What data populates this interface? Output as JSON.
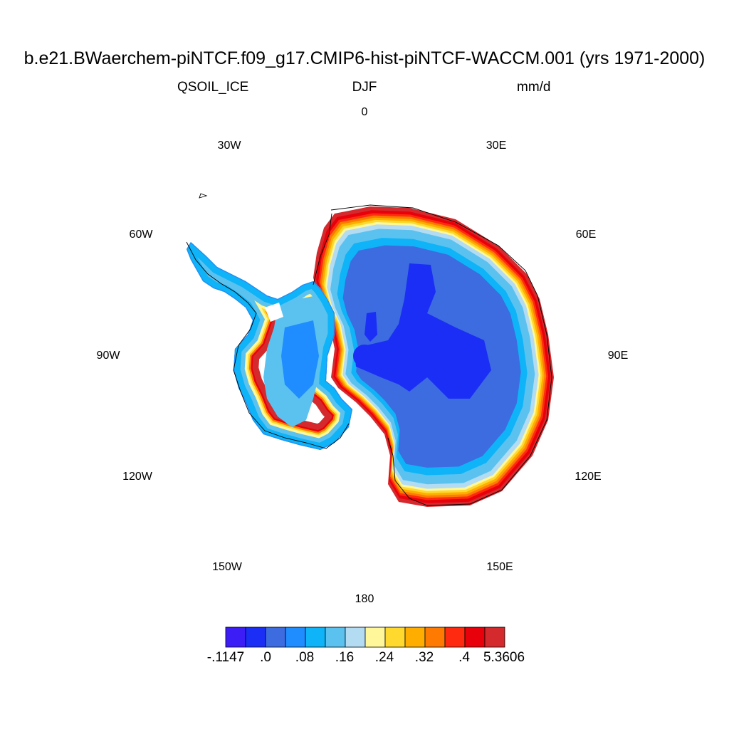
{
  "header": {
    "title": "b.e21.BWaerchem-piNTCF.f09_g17.CMIP6-hist-piNTCF-WACCM.001 (yrs 1971-2000)",
    "variable": "QSOIL_ICE",
    "season": "DJF",
    "units": "mm/d"
  },
  "map": {
    "projection": "polar stereographic",
    "region": "Antarctica",
    "longitude_labels": [
      "0",
      "30E",
      "60E",
      "90E",
      "120E",
      "150E",
      "180",
      "150W",
      "120W",
      "90W",
      "60W",
      "30W"
    ]
  },
  "colorbar": {
    "colors": [
      "#3d1df5",
      "#1a2ef5",
      "#3d6be0",
      "#1f8cff",
      "#0eb4f7",
      "#5bc2f0",
      "#b3dcf2",
      "#fff799",
      "#ffd92e",
      "#ffae00",
      "#ff7a00",
      "#ff2a10",
      "#e8000a",
      "#d42a2e"
    ],
    "tick_labels": [
      "-.1147",
      ".0",
      ".08",
      ".16",
      ".24",
      ".32",
      ".4",
      "5.3606"
    ]
  }
}
